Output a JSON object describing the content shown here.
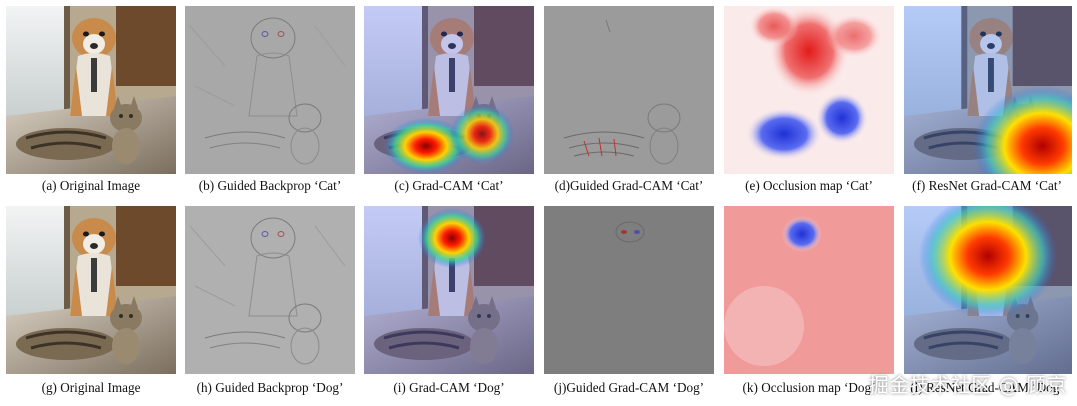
{
  "figure": {
    "row1": {
      "a": "(a) Original Image",
      "b": "(b) Guided Backprop ‘Cat’",
      "c": "(c) Grad-CAM ‘Cat’",
      "d": "(d)Guided Grad-CAM ‘Cat’",
      "e": "(e) Occlusion map ‘Cat’",
      "f": "(f) ResNet Grad-CAM ‘Cat’"
    },
    "row2": {
      "g": "(g) Original Image",
      "h": "(h) Guided Backprop ‘Dog’",
      "i": "(i) Grad-CAM ‘Dog’",
      "j": "(j)Guided Grad-CAM ‘Dog’",
      "k": "(k) Occlusion map ‘Dog’",
      "l": "(l) ResNet Grad-CAM ‘Dog’"
    }
  },
  "watermark": "掘金技术社区 @ 顾京",
  "colors": {
    "heat_hot": "#c40000",
    "heat_warm": "#ffd200",
    "heat_cool": "#2a6cff",
    "occlusion_red": "#e83030",
    "occlusion_blue": "#2a3fd8",
    "gray_map": "#9a9a9a"
  }
}
